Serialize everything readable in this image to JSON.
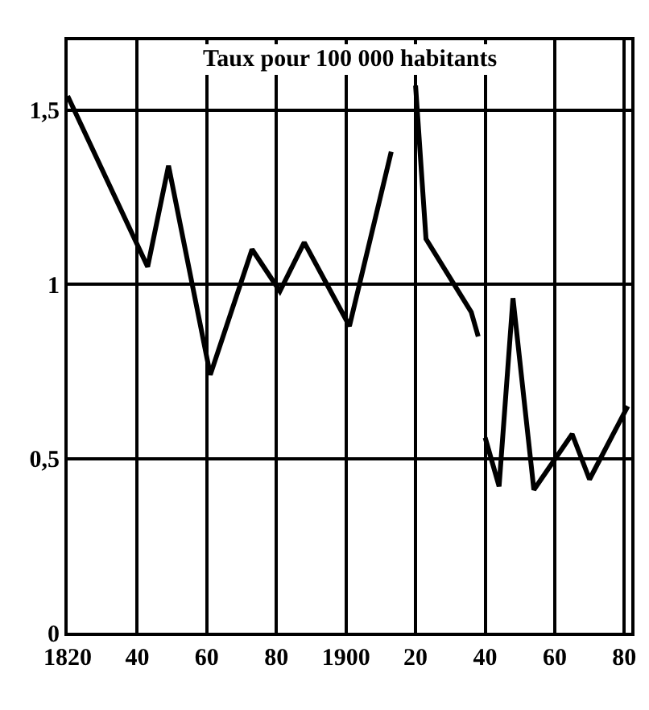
{
  "chart_data": {
    "type": "line",
    "annotations": [
      "Taux pour 100 000 habitants"
    ],
    "x": [
      1820,
      1843,
      1849,
      1861,
      1873,
      1881,
      1888,
      1901,
      1913,
      1916,
      1920,
      1923,
      1936,
      1938,
      1939,
      1940,
      1944,
      1948,
      1954,
      1965,
      1970,
      1981
    ],
    "series": [
      {
        "color": "#000000",
        "values": [
          1.54,
          1.05,
          1.34,
          0.74,
          1.1,
          0.98,
          1.12,
          0.88,
          1.38,
          null,
          1.57,
          1.13,
          0.92,
          0.85,
          null,
          0.56,
          0.42,
          0.96,
          0.41,
          0.57,
          0.44,
          0.65
        ]
      }
    ],
    "xlim": [
      1820,
      1982
    ],
    "xticks": [
      1820,
      {
        "value": 1840,
        "label": "40"
      },
      {
        "value": 1860,
        "label": "60"
      },
      {
        "value": 1880,
        "label": "80"
      },
      1900,
      {
        "value": 1920,
        "label": "20"
      },
      {
        "value": 1940,
        "label": "40"
      },
      {
        "value": 1960,
        "label": "60"
      },
      {
        "value": 1980,
        "label": "80"
      }
    ],
    "ylim": [
      0,
      1.7
    ],
    "yticks": [
      0,
      {
        "value": 0.5,
        "label": "0,5"
      },
      1,
      {
        "value": 1.5,
        "label": "1,5"
      }
    ],
    "grid": true,
    "marker": "none",
    "line_style": "solid"
  }
}
